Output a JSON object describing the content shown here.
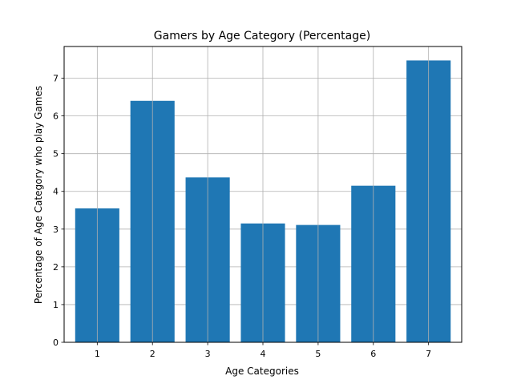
{
  "chart_data": {
    "type": "bar",
    "title": "Gamers by Age Category (Percentage)",
    "xlabel": "Age Categories",
    "ylabel": "Percentage of Age Category who play Games",
    "categories": [
      "1",
      "2",
      "3",
      "4",
      "5",
      "6",
      "7"
    ],
    "values": [
      3.55,
      6.4,
      4.37,
      3.15,
      3.11,
      4.15,
      7.47
    ],
    "yticks": [
      "0",
      "1",
      "2",
      "3",
      "4",
      "5",
      "6",
      "7"
    ],
    "ylim": [
      0,
      7.84
    ],
    "grid": true,
    "bar_color": "#1f77b4",
    "grid_color": "#b0b0b0"
  }
}
